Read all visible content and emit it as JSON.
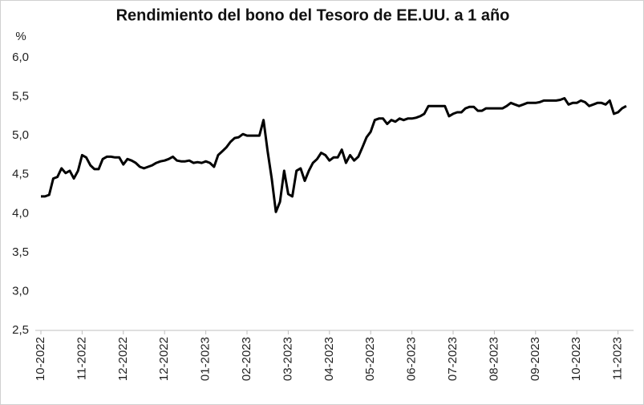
{
  "chart_data": {
    "type": "line",
    "title": "Rendimiento del bono del Tesoro de EE.UU. a 1 año",
    "y_label": "%",
    "categories": [
      "10-2022",
      null,
      null,
      null,
      null,
      null,
      null,
      null,
      null,
      null,
      "11-2022",
      null,
      null,
      null,
      null,
      null,
      null,
      null,
      null,
      null,
      "12-2022",
      null,
      null,
      null,
      null,
      null,
      null,
      null,
      null,
      null,
      "12-2022",
      null,
      null,
      null,
      null,
      null,
      null,
      null,
      null,
      null,
      "01-2023",
      null,
      null,
      null,
      null,
      null,
      null,
      null,
      null,
      null,
      "02-2023",
      null,
      null,
      null,
      null,
      null,
      null,
      null,
      null,
      null,
      "03-2023",
      null,
      null,
      null,
      null,
      null,
      null,
      null,
      null,
      null,
      "04-2023",
      null,
      null,
      null,
      null,
      null,
      null,
      null,
      null,
      null,
      "05-2023",
      null,
      null,
      null,
      null,
      null,
      null,
      null,
      null,
      null,
      "06-2023",
      null,
      null,
      null,
      null,
      null,
      null,
      null,
      null,
      null,
      "07-2023",
      null,
      null,
      null,
      null,
      null,
      null,
      null,
      null,
      null,
      "08-2023",
      null,
      null,
      null,
      null,
      null,
      null,
      null,
      null,
      null,
      "09-2023",
      null,
      null,
      null,
      null,
      null,
      null,
      null,
      null,
      null,
      "10-2023",
      null,
      null,
      null,
      null,
      null,
      null,
      null,
      null,
      null,
      "11-2023",
      null,
      null
    ],
    "series": [
      {
        "name": "1 año",
        "color": "#000000",
        "values": [
          4.22,
          4.22,
          4.24,
          4.45,
          4.47,
          4.58,
          4.52,
          4.55,
          4.45,
          4.55,
          4.75,
          4.72,
          4.62,
          4.57,
          4.57,
          4.7,
          4.73,
          4.73,
          4.72,
          4.72,
          4.63,
          4.7,
          4.68,
          4.65,
          4.6,
          4.58,
          4.6,
          4.62,
          4.65,
          4.67,
          4.68,
          4.7,
          4.73,
          4.68,
          4.67,
          4.67,
          4.68,
          4.65,
          4.66,
          4.65,
          4.67,
          4.65,
          4.6,
          4.75,
          4.8,
          4.85,
          4.92,
          4.97,
          4.98,
          5.02,
          5.0,
          5.0,
          5.0,
          5.0,
          5.2,
          4.8,
          4.45,
          4.02,
          4.15,
          4.55,
          4.25,
          4.22,
          4.55,
          4.58,
          4.42,
          4.55,
          4.65,
          4.7,
          4.78,
          4.75,
          4.68,
          4.72,
          4.72,
          4.82,
          4.65,
          4.75,
          4.68,
          4.73,
          4.85,
          4.98,
          5.05,
          5.2,
          5.22,
          5.22,
          5.15,
          5.2,
          5.18,
          5.22,
          5.2,
          5.22,
          5.22,
          5.23,
          5.25,
          5.28,
          5.38,
          5.38,
          5.38,
          5.38,
          5.38,
          5.25,
          5.28,
          5.3,
          5.3,
          5.35,
          5.37,
          5.37,
          5.32,
          5.32,
          5.35,
          5.35,
          5.35,
          5.35,
          5.35,
          5.38,
          5.42,
          5.4,
          5.38,
          5.4,
          5.42,
          5.42,
          5.42,
          5.43,
          5.45,
          5.45,
          5.45,
          5.45,
          5.46,
          5.48,
          5.4,
          5.42,
          5.42,
          5.45,
          5.43,
          5.38,
          5.4,
          5.42,
          5.42,
          5.4,
          5.45,
          5.28,
          5.3,
          5.35,
          5.38
        ]
      }
    ],
    "ylim": [
      2.5,
      6.0
    ],
    "yticks": [
      {
        "value": 2.5,
        "label": "2,5"
      },
      {
        "value": 3.0,
        "label": "3,0"
      },
      {
        "value": 3.5,
        "label": "3,5"
      },
      {
        "value": 4.0,
        "label": "4,0"
      },
      {
        "value": 4.5,
        "label": "4,5"
      },
      {
        "value": 5.0,
        "label": "5,0"
      },
      {
        "value": 5.5,
        "label": "5,5"
      },
      {
        "value": 6.0,
        "label": "6,0"
      }
    ],
    "grid": false
  }
}
